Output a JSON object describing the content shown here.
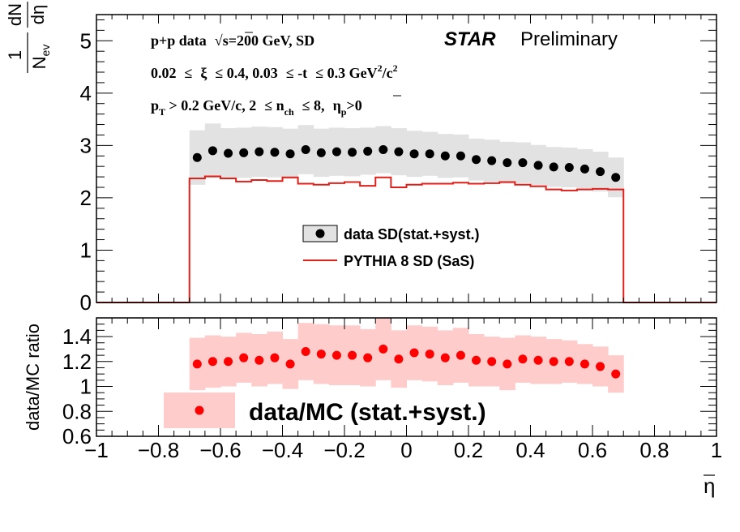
{
  "chart_data": [
    {
      "type": "scatter",
      "panel": "top",
      "ylabel": "1/N_ev dN/dη",
      "ylabel_parts": {
        "num": "1",
        "den": "N",
        "den_sub": "ev",
        "num2": "dN",
        "den2": "dη"
      },
      "xlim": [
        -1,
        1
      ],
      "ylim": [
        0,
        5.5
      ],
      "yticks": [
        0,
        1,
        2,
        3,
        4,
        5
      ],
      "ytick_labels": [
        "0",
        "1",
        "2",
        "3",
        "4",
        "5"
      ],
      "annotations": {
        "line1": "p+p data",
        "sqrt_sym": "√",
        "line1b": "s=200 GeV, SD",
        "line2a": "0.02",
        "line2b": "≤",
        "line2c": "ξ",
        "line2d": "≤ 0.4, 0.03",
        "line2e": "≤ -t",
        "line2f": "≤ 0.3 GeV",
        "line2_sup": "2",
        "line2g": "/c",
        "line2_sup2": "2",
        "line3a": "p",
        "line3_sub": "T",
        "line3b": " > 0.2 GeV/c, 2",
        "line3c": "≤ n",
        "line3_sub2": "ch",
        "line3d": "≤ 8,",
        "line3e": "η",
        "line3_sub3": "p",
        "line3f": ">0",
        "star": "STAR",
        "prelim": "Preliminary"
      },
      "legend": {
        "placement": "center",
        "entries": [
          "data SD(stat.+syst.)",
          "PYTHIA 8 SD (SaS)"
        ]
      },
      "series": [
        {
          "name": "data SD(stat.+syst.)",
          "color": "#000000",
          "band_color": "#e2e2e2",
          "x": [
            -0.675,
            -0.625,
            -0.575,
            -0.525,
            -0.475,
            -0.425,
            -0.375,
            -0.325,
            -0.275,
            -0.225,
            -0.175,
            -0.125,
            -0.075,
            -0.025,
            0.025,
            0.075,
            0.125,
            0.175,
            0.225,
            0.275,
            0.325,
            0.375,
            0.425,
            0.475,
            0.525,
            0.575,
            0.625,
            0.675
          ],
          "y": [
            2.77,
            2.9,
            2.85,
            2.86,
            2.88,
            2.87,
            2.84,
            2.92,
            2.86,
            2.88,
            2.87,
            2.89,
            2.92,
            2.88,
            2.84,
            2.84,
            2.8,
            2.8,
            2.73,
            2.71,
            2.67,
            2.67,
            2.62,
            2.59,
            2.58,
            2.55,
            2.5,
            2.39
          ],
          "band_half": [
            0.52,
            0.52,
            0.48,
            0.48,
            0.48,
            0.48,
            0.48,
            0.47,
            0.46,
            0.46,
            0.46,
            0.45,
            0.45,
            0.45,
            0.44,
            0.42,
            0.42,
            0.41,
            0.4,
            0.4,
            0.4,
            0.39,
            0.39,
            0.38,
            0.38,
            0.38,
            0.38,
            0.38
          ]
        },
        {
          "name": "PYTHIA 8 SD (SaS)",
          "color": "#e0201b",
          "bin_edges": [
            -0.7,
            -0.65,
            -0.6,
            -0.55,
            -0.5,
            -0.45,
            -0.4,
            -0.35,
            -0.3,
            -0.25,
            -0.2,
            -0.15,
            -0.1,
            -0.05,
            0.0,
            0.05,
            0.1,
            0.15,
            0.2,
            0.25,
            0.3,
            0.35,
            0.4,
            0.45,
            0.5,
            0.55,
            0.6,
            0.65,
            0.7
          ],
          "y": [
            2.37,
            2.41,
            2.37,
            2.31,
            2.34,
            2.32,
            2.39,
            2.27,
            2.25,
            2.28,
            2.3,
            2.23,
            2.39,
            2.2,
            2.25,
            2.27,
            2.27,
            2.29,
            2.27,
            2.28,
            2.3,
            2.25,
            2.22,
            2.16,
            2.14,
            2.16,
            2.17,
            2.16
          ],
          "outside_value": 0
        }
      ]
    },
    {
      "type": "scatter",
      "panel": "bottom",
      "xlabel": "η",
      "ylabel": "data/MC ratio",
      "xlim": [
        -1,
        1
      ],
      "ylim": [
        0.6,
        1.55
      ],
      "xticks": [
        -1,
        -0.8,
        -0.6,
        -0.4,
        -0.2,
        0,
        0.2,
        0.4,
        0.6,
        0.8,
        1
      ],
      "xtick_labels": [
        "−1",
        "−0.8",
        "−0.6",
        "−0.4",
        "−0.2",
        "0",
        "0.2",
        "0.4",
        "0.6",
        "0.8",
        "1"
      ],
      "yticks": [
        0.6,
        0.8,
        1,
        1.2,
        1.4
      ],
      "ytick_labels": [
        "0.6",
        "0.8",
        "1",
        "1.2",
        "1.4"
      ],
      "legend": {
        "placement": "bottom-left",
        "entries": [
          "data/MC (stat.+syst.)"
        ]
      },
      "series": [
        {
          "name": "data/MC (stat.+syst.)",
          "color": "#ff0000",
          "band_color": "#ffcccc",
          "x": [
            -0.675,
            -0.625,
            -0.575,
            -0.525,
            -0.475,
            -0.425,
            -0.375,
            -0.325,
            -0.275,
            -0.225,
            -0.175,
            -0.125,
            -0.075,
            -0.025,
            0.025,
            0.075,
            0.125,
            0.175,
            0.225,
            0.275,
            0.325,
            0.375,
            0.425,
            0.475,
            0.525,
            0.575,
            0.625,
            0.675
          ],
          "y": [
            1.18,
            1.2,
            1.2,
            1.23,
            1.21,
            1.23,
            1.18,
            1.28,
            1.26,
            1.25,
            1.25,
            1.23,
            1.3,
            1.22,
            1.27,
            1.26,
            1.23,
            1.25,
            1.21,
            1.2,
            1.18,
            1.22,
            1.21,
            1.2,
            1.2,
            1.18,
            1.16,
            1.1
          ],
          "band_half": [
            0.21,
            0.21,
            0.2,
            0.2,
            0.21,
            0.21,
            0.2,
            0.23,
            0.24,
            0.24,
            0.24,
            0.23,
            0.25,
            0.23,
            0.22,
            0.22,
            0.22,
            0.22,
            0.21,
            0.2,
            0.21,
            0.19,
            0.19,
            0.18,
            0.17,
            0.16,
            0.16,
            0.15
          ]
        }
      ]
    }
  ]
}
